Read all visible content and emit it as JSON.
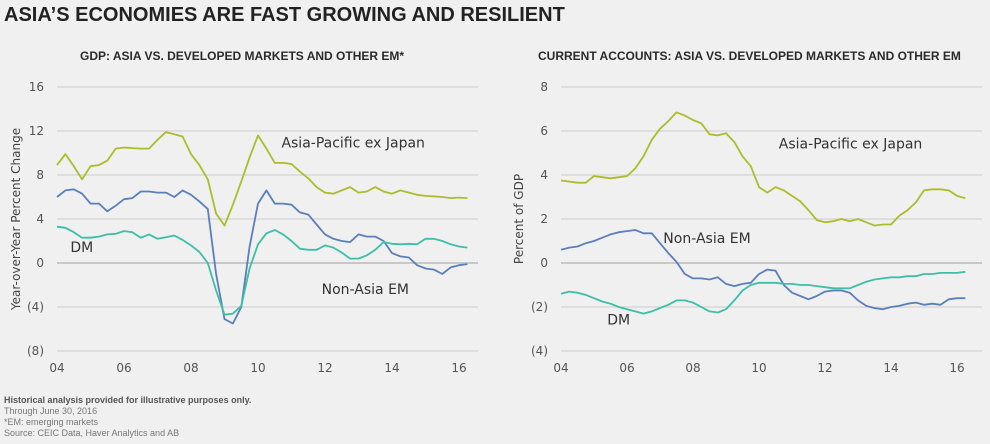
{
  "page": {
    "title": "ASIA’S ECONOMIES ARE FAST GROWING AND RESILIENT",
    "footnotes": {
      "disclaimer": "Historical analysis provided for illustrative purposes only.",
      "through": "Through June 30, 2016",
      "em_note": "*EM: emerging markets",
      "source": "Source: CEIC Data, Haver Analytics and AB"
    }
  },
  "colors": {
    "asia_pacific": "#a9be2a",
    "non_asia_em": "#5b7fba",
    "dm": "#3cbfa6",
    "grid": "#d4d4d4",
    "zero_line": "#c8c8c8"
  },
  "chart_data": [
    {
      "type": "line",
      "title": "GDP: ASIA VS. DEVELOPED MARKETS AND OTHER EM*",
      "xlabel": "",
      "ylabel": "Year-over-Year Percent Change",
      "x_start": 2004,
      "x_step": 0.25,
      "xlim": [
        2004,
        2016.5
      ],
      "ylim": [
        -8,
        16
      ],
      "yticks": [
        16,
        12,
        8,
        4,
        0,
        -4,
        -8
      ],
      "ytick_labels": [
        "16",
        "12",
        "8",
        "4",
        "0",
        "(4)",
        "(8)"
      ],
      "xticks": [
        2004,
        2006,
        2008,
        2010,
        2012,
        2014,
        2016
      ],
      "xtick_labels": [
        "04",
        "06",
        "08",
        "10",
        "12",
        "14",
        "16"
      ],
      "grid": true,
      "series": [
        {
          "name": "Asia-Pacific ex Japan",
          "color_key": "asia_pacific",
          "values": [
            8.9,
            9.9,
            8.8,
            7.6,
            8.8,
            8.9,
            9.3,
            10.4,
            10.5,
            10.45,
            10.4,
            10.4,
            11.2,
            11.9,
            11.7,
            11.5,
            9.9,
            8.9,
            7.6,
            4.5,
            3.4,
            5.3,
            7.4,
            9.6,
            11.6,
            10.4,
            9.1,
            9.1,
            9.0,
            8.3,
            7.7,
            6.9,
            6.4,
            6.3,
            6.6,
            6.9,
            6.4,
            6.5,
            6.9,
            6.5,
            6.3,
            6.6,
            6.4,
            6.2,
            6.1,
            6.05,
            6.0,
            5.9,
            5.95,
            5.9
          ]
        },
        {
          "name": "Non-Asia EM",
          "color_key": "non_asia_em",
          "values": [
            6.0,
            6.6,
            6.7,
            6.3,
            5.4,
            5.4,
            4.7,
            5.2,
            5.8,
            5.9,
            6.5,
            6.5,
            6.4,
            6.4,
            6.0,
            6.6,
            6.2,
            5.6,
            4.9,
            -1.0,
            -5.1,
            -5.5,
            -4.0,
            1.5,
            5.4,
            6.6,
            5.4,
            5.4,
            5.3,
            4.6,
            4.4,
            3.5,
            2.6,
            2.2,
            2.0,
            1.9,
            2.6,
            2.4,
            2.4,
            2.0,
            0.9,
            0.6,
            0.5,
            -0.2,
            -0.5,
            -0.6,
            -1.0,
            -0.4,
            -0.2,
            -0.1
          ]
        },
        {
          "name": "DM",
          "color_key": "dm",
          "values": [
            3.3,
            3.2,
            2.8,
            2.3,
            2.3,
            2.4,
            2.6,
            2.65,
            2.9,
            2.8,
            2.3,
            2.6,
            2.2,
            2.35,
            2.5,
            2.1,
            1.6,
            1.0,
            0.0,
            -2.5,
            -4.7,
            -4.6,
            -3.9,
            -0.5,
            1.7,
            2.7,
            3.0,
            2.6,
            2.0,
            1.3,
            1.2,
            1.2,
            1.6,
            1.4,
            0.95,
            0.4,
            0.4,
            0.7,
            1.2,
            1.9,
            1.75,
            1.7,
            1.75,
            1.7,
            2.2,
            2.2,
            2.0,
            1.7,
            1.5,
            1.4
          ]
        }
      ],
      "annotations": [
        {
          "text": "Asia-Pacific ex Japan",
          "x": 2010.7,
          "y": 10.5
        },
        {
          "text": "DM",
          "x": 2004.4,
          "y": 1.0
        },
        {
          "text": "Non-Asia EM",
          "x": 2011.9,
          "y": -2.8
        }
      ]
    },
    {
      "type": "line",
      "title": "CURRENT ACCOUNTS: ASIA VS. DEVELOPED MARKETS AND OTHER EM",
      "xlabel": "",
      "ylabel": "Percent of GDP",
      "x_start": 2004,
      "x_step": 0.25,
      "xlim": [
        2004,
        2016.5
      ],
      "ylim": [
        -4,
        8
      ],
      "yticks": [
        8,
        6,
        4,
        2,
        0,
        -2,
        -4
      ],
      "ytick_labels": [
        "8",
        "6",
        "4",
        "2",
        "0",
        "(2)",
        "(4)"
      ],
      "xticks": [
        2004,
        2006,
        2008,
        2010,
        2012,
        2014,
        2016
      ],
      "xtick_labels": [
        "04",
        "06",
        "08",
        "10",
        "12",
        "14",
        "16"
      ],
      "grid": true,
      "series": [
        {
          "name": "Asia-Pacific ex Japan",
          "color_key": "asia_pacific",
          "values": [
            3.75,
            3.7,
            3.65,
            3.65,
            3.95,
            3.9,
            3.85,
            3.9,
            3.95,
            4.3,
            4.85,
            5.6,
            6.1,
            6.45,
            6.85,
            6.7,
            6.5,
            6.35,
            5.85,
            5.8,
            5.9,
            5.5,
            4.85,
            4.4,
            3.45,
            3.2,
            3.45,
            3.3,
            3.05,
            2.8,
            2.4,
            1.95,
            1.85,
            1.9,
            2.0,
            1.9,
            2.0,
            1.85,
            1.7,
            1.75,
            1.75,
            2.15,
            2.4,
            2.75,
            3.3,
            3.35,
            3.35,
            3.3,
            3.05,
            2.95
          ]
        },
        {
          "name": "Non-Asia EM",
          "color_key": "non_asia_em",
          "values": [
            0.6,
            0.7,
            0.75,
            0.9,
            1.0,
            1.15,
            1.3,
            1.4,
            1.45,
            1.5,
            1.35,
            1.35,
            0.9,
            0.45,
            0.05,
            -0.5,
            -0.7,
            -0.7,
            -0.75,
            -0.65,
            -0.95,
            -1.05,
            -0.95,
            -0.9,
            -0.5,
            -0.3,
            -0.35,
            -1.0,
            -1.35,
            -1.5,
            -1.65,
            -1.5,
            -1.3,
            -1.25,
            -1.25,
            -1.35,
            -1.7,
            -1.95,
            -2.05,
            -2.1,
            -2.0,
            -1.95,
            -1.85,
            -1.8,
            -1.9,
            -1.85,
            -1.9,
            -1.65,
            -1.6,
            -1.6
          ]
        },
        {
          "name": "DM",
          "color_key": "dm",
          "values": [
            -1.4,
            -1.3,
            -1.35,
            -1.45,
            -1.6,
            -1.75,
            -1.85,
            -2.0,
            -2.1,
            -2.2,
            -2.3,
            -2.2,
            -2.05,
            -1.9,
            -1.7,
            -1.7,
            -1.8,
            -2.0,
            -2.2,
            -2.25,
            -2.1,
            -1.7,
            -1.25,
            -1.0,
            -0.9,
            -0.9,
            -0.9,
            -0.95,
            -0.95,
            -1.0,
            -1.0,
            -1.05,
            -1.1,
            -1.15,
            -1.15,
            -1.15,
            -1.0,
            -0.85,
            -0.75,
            -0.7,
            -0.65,
            -0.65,
            -0.6,
            -0.6,
            -0.5,
            -0.5,
            -0.45,
            -0.45,
            -0.45,
            -0.4
          ]
        }
      ],
      "annotations": [
        {
          "text": "Asia-Pacific ex Japan",
          "x": 2010.6,
          "y": 5.2
        },
        {
          "text": "Non-Asia EM",
          "x": 2007.1,
          "y": 0.9
        },
        {
          "text": "DM",
          "x": 2005.4,
          "y": -2.8
        }
      ]
    }
  ]
}
